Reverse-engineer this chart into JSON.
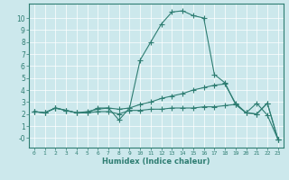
{
  "xlabel": "Humidex (Indice chaleur)",
  "ylabel": "",
  "bg_color": "#cce8ec",
  "line_color": "#2e7d72",
  "xlim": [
    -0.5,
    23.5
  ],
  "ylim": [
    -0.8,
    11.2
  ],
  "xticks": [
    0,
    1,
    2,
    3,
    4,
    5,
    6,
    7,
    8,
    9,
    10,
    11,
    12,
    13,
    14,
    15,
    16,
    17,
    18,
    19,
    20,
    21,
    22,
    23
  ],
  "yticks": [
    0,
    1,
    2,
    3,
    4,
    5,
    6,
    7,
    8,
    9,
    10
  ],
  "ytick_labels": [
    "-0",
    "1",
    "2",
    "3",
    "4",
    "5",
    "6",
    "7",
    "8",
    "9",
    "10"
  ],
  "line1_x": [
    0,
    1,
    2,
    3,
    4,
    5,
    6,
    7,
    8,
    9,
    10,
    11,
    12,
    13,
    14,
    15,
    16,
    17,
    18,
    19,
    20,
    21,
    22,
    23
  ],
  "line1_y": [
    2.2,
    2.1,
    2.5,
    2.3,
    2.1,
    2.1,
    2.5,
    2.5,
    1.5,
    2.5,
    6.5,
    8.0,
    9.5,
    10.5,
    10.6,
    10.2,
    10.0,
    5.3,
    4.6,
    2.8,
    2.1,
    2.9,
    1.9,
    -0.1
  ],
  "line2_x": [
    0,
    1,
    2,
    3,
    4,
    5,
    6,
    7,
    8,
    9,
    10,
    11,
    12,
    13,
    14,
    15,
    16,
    17,
    18,
    19,
    20,
    21,
    22,
    23
  ],
  "line2_y": [
    2.2,
    2.1,
    2.5,
    2.3,
    2.1,
    2.2,
    2.4,
    2.5,
    2.4,
    2.5,
    2.8,
    3.0,
    3.3,
    3.5,
    3.7,
    4.0,
    4.2,
    4.4,
    4.5,
    2.9,
    2.1,
    2.0,
    2.9,
    -0.1
  ],
  "line3_x": [
    0,
    1,
    2,
    3,
    4,
    5,
    6,
    7,
    8,
    9,
    10,
    11,
    12,
    13,
    14,
    15,
    16,
    17,
    18,
    19,
    20,
    21,
    22,
    23
  ],
  "line3_y": [
    2.2,
    2.1,
    2.5,
    2.3,
    2.1,
    2.1,
    2.2,
    2.2,
    2.0,
    2.3,
    2.3,
    2.4,
    2.4,
    2.5,
    2.5,
    2.5,
    2.6,
    2.6,
    2.7,
    2.8,
    2.1,
    2.0,
    2.9,
    -0.1
  ]
}
